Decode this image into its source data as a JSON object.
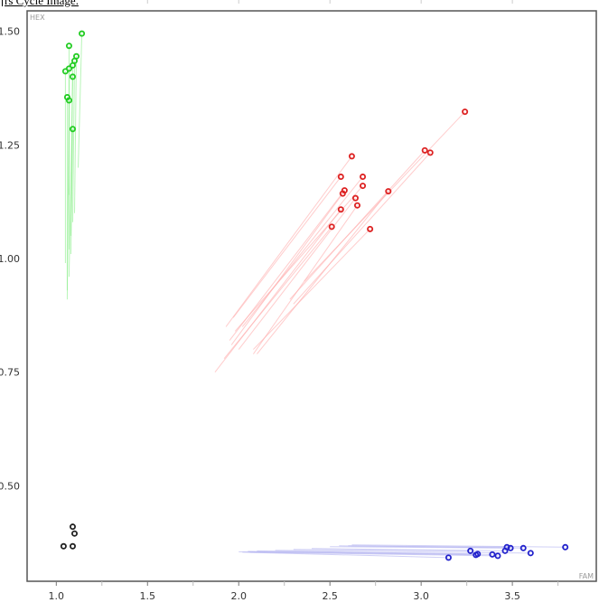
{
  "caption": "rs Cycle Image.",
  "chart_data": {
    "type": "scatter",
    "xlabel": "FAM",
    "ylabel": "HEX",
    "xlim": [
      0.84,
      3.96
    ],
    "ylim": [
      0.29,
      1.545
    ],
    "x_ticks": [
      "1.0",
      "1.5",
      "2.0",
      "2.5",
      "3.0",
      "3.5"
    ],
    "x_tick_values": [
      1.0,
      1.5,
      2.0,
      2.5,
      3.0,
      3.5
    ],
    "y_ticks": [
      "0.50",
      "0.75",
      "1.00",
      "1.25",
      "1.50"
    ],
    "y_tick_values": [
      0.5,
      0.75,
      1.0,
      1.25,
      1.5
    ],
    "grid": false,
    "series": [
      {
        "color": "#22cc22",
        "trail_color": "#88ee88",
        "points": [
          {
            "x": 1.14,
            "y": 1.495,
            "tx": 1.12,
            "ty": 1.2
          },
          {
            "x": 1.07,
            "y": 1.468,
            "tx": 1.07,
            "ty": 1.14
          },
          {
            "x": 1.11,
            "y": 1.445,
            "tx": 1.1,
            "ty": 1.1
          },
          {
            "x": 1.1,
            "y": 1.435,
            "tx": 1.09,
            "ty": 1.08
          },
          {
            "x": 1.09,
            "y": 1.425,
            "tx": 1.08,
            "ty": 1.05
          },
          {
            "x": 1.07,
            "y": 1.418,
            "tx": 1.07,
            "ty": 1.02
          },
          {
            "x": 1.05,
            "y": 1.412,
            "tx": 1.05,
            "ty": 0.99
          },
          {
            "x": 1.09,
            "y": 1.4,
            "tx": 1.07,
            "ty": 0.96
          },
          {
            "x": 1.06,
            "y": 1.355,
            "tx": 1.06,
            "ty": 0.93
          },
          {
            "x": 1.07,
            "y": 1.348,
            "tx": 1.06,
            "ty": 0.91
          },
          {
            "x": 1.09,
            "y": 1.285,
            "tx": 1.08,
            "ty": 1.01
          }
        ]
      },
      {
        "color": "#dd2222",
        "trail_color": "#ffaaaa",
        "points": [
          {
            "x": 3.24,
            "y": 1.323,
            "tx": 2.36,
            "ty": 0.95
          },
          {
            "x": 3.02,
            "y": 1.238,
            "tx": 2.28,
            "ty": 0.91
          },
          {
            "x": 3.05,
            "y": 1.233,
            "tx": 2.3,
            "ty": 0.9
          },
          {
            "x": 2.62,
            "y": 1.225,
            "tx": 1.93,
            "ty": 0.85
          },
          {
            "x": 2.56,
            "y": 1.18,
            "tx": 1.97,
            "ty": 0.87
          },
          {
            "x": 2.68,
            "y": 1.18,
            "tx": 2.02,
            "ty": 0.85
          },
          {
            "x": 2.68,
            "y": 1.16,
            "tx": 1.98,
            "ty": 0.84
          },
          {
            "x": 2.58,
            "y": 1.15,
            "tx": 1.95,
            "ty": 0.82
          },
          {
            "x": 2.57,
            "y": 1.143,
            "tx": 1.96,
            "ty": 0.81
          },
          {
            "x": 2.82,
            "y": 1.148,
            "tx": 2.1,
            "ty": 0.79
          },
          {
            "x": 2.64,
            "y": 1.133,
            "tx": 2.0,
            "ty": 0.8
          },
          {
            "x": 2.65,
            "y": 1.117,
            "tx": 2.08,
            "ty": 0.79
          },
          {
            "x": 2.56,
            "y": 1.108,
            "tx": 1.87,
            "ty": 0.75
          },
          {
            "x": 2.51,
            "y": 1.07,
            "tx": 1.92,
            "ty": 0.78
          },
          {
            "x": 2.72,
            "y": 1.065,
            "tx": 2.08,
            "ty": 0.8
          }
        ]
      },
      {
        "color": "#2222cc",
        "trail_color": "#b0b0f0",
        "points": [
          {
            "x": 3.79,
            "y": 0.365,
            "tx": 2.62,
            "ty": 0.37
          },
          {
            "x": 3.56,
            "y": 0.363,
            "tx": 2.6,
            "ty": 0.368
          },
          {
            "x": 3.47,
            "y": 0.365,
            "tx": 2.55,
            "ty": 0.368
          },
          {
            "x": 3.49,
            "y": 0.363,
            "tx": 2.5,
            "ty": 0.366
          },
          {
            "x": 3.46,
            "y": 0.357,
            "tx": 2.4,
            "ty": 0.362
          },
          {
            "x": 3.27,
            "y": 0.357,
            "tx": 2.3,
            "ty": 0.36
          },
          {
            "x": 3.6,
            "y": 0.352,
            "tx": 2.2,
            "ty": 0.358
          },
          {
            "x": 3.31,
            "y": 0.35,
            "tx": 2.1,
            "ty": 0.357
          },
          {
            "x": 3.3,
            "y": 0.348,
            "tx": 2.05,
            "ty": 0.356
          },
          {
            "x": 3.39,
            "y": 0.349,
            "tx": 2.0,
            "ty": 0.355
          },
          {
            "x": 3.42,
            "y": 0.346,
            "tx": 2.06,
            "ty": 0.354
          },
          {
            "x": 3.15,
            "y": 0.342,
            "tx": 2.02,
            "ty": 0.354
          }
        ]
      },
      {
        "color": "#222222",
        "trail_color": "#999999",
        "points": [
          {
            "x": 1.09,
            "y": 0.41
          },
          {
            "x": 1.1,
            "y": 0.395
          },
          {
            "x": 1.04,
            "y": 0.367
          },
          {
            "x": 1.09,
            "y": 0.367
          }
        ]
      }
    ]
  }
}
